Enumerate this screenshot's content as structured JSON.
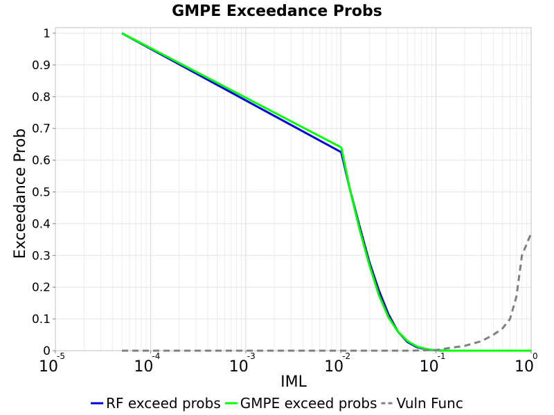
{
  "chart_data": {
    "type": "line",
    "title": "GMPE Exceedance Probs",
    "xlabel": "IML",
    "ylabel": "Exceedance Prob",
    "xscale": "log",
    "xlim": [
      1e-05,
      1
    ],
    "ylim": [
      0,
      1.02
    ],
    "grid": true,
    "legend_position": "bottom",
    "x_tick_labels": [
      {
        "base": "10",
        "exp": "-5",
        "value": 1e-05
      },
      {
        "base": "10",
        "exp": "-4",
        "value": 0.0001
      },
      {
        "base": "10",
        "exp": "-3",
        "value": 0.001
      },
      {
        "base": "10",
        "exp": "-2",
        "value": 0.01
      },
      {
        "base": "10",
        "exp": "-1",
        "value": 0.1
      },
      {
        "base": "10",
        "exp": "0",
        "value": 1
      }
    ],
    "y_tick_labels": [
      "0",
      "0.1",
      "0.2",
      "0.3",
      "0.4",
      "0.5",
      "0.6",
      "0.7",
      "0.8",
      "0.9",
      "1"
    ],
    "y_tick_values": [
      0,
      0.1,
      0.2,
      0.3,
      0.4,
      0.5,
      0.6,
      0.7,
      0.8,
      0.9,
      1
    ],
    "series": [
      {
        "name": "RF exceed probs",
        "color": "#0000dd",
        "dash": "solid",
        "x": [
          5e-05,
          0.0101,
          0.0124,
          0.0158,
          0.0199,
          0.0251,
          0.0316,
          0.0398,
          0.0501,
          0.0631,
          0.0794,
          0.1,
          0.126,
          0.2,
          0.5,
          1.0
        ],
        "y": [
          1.0,
          0.625,
          0.51,
          0.39,
          0.28,
          0.19,
          0.115,
          0.06,
          0.027,
          0.011,
          0.004,
          0.001,
          0.0,
          0.0,
          0.0,
          0.0
        ]
      },
      {
        "name": "GMPE exceed probs",
        "color": "#00ff00",
        "dash": "solid",
        "x": [
          5e-05,
          0.0101,
          0.0124,
          0.0158,
          0.0199,
          0.0251,
          0.0316,
          0.0398,
          0.0501,
          0.0631,
          0.0794,
          0.1,
          0.126,
          0.2,
          0.5,
          1.0
        ],
        "y": [
          1.0,
          0.64,
          0.51,
          0.38,
          0.27,
          0.175,
          0.105,
          0.06,
          0.03,
          0.013,
          0.005,
          0.001,
          0.0,
          0.0,
          0.0,
          0.0
        ]
      },
      {
        "name": "Vuln Func",
        "color": "#808080",
        "dash": "dashed",
        "x": [
          5e-05,
          0.001,
          0.01,
          0.05,
          0.1,
          0.15,
          0.2,
          0.3,
          0.4,
          0.5,
          0.6,
          0.7,
          0.8,
          1.0
        ],
        "y": [
          0.0,
          0.0,
          0.0,
          0.0,
          0.002,
          0.01,
          0.015,
          0.03,
          0.05,
          0.07,
          0.1,
          0.17,
          0.3,
          0.37
        ]
      }
    ]
  }
}
